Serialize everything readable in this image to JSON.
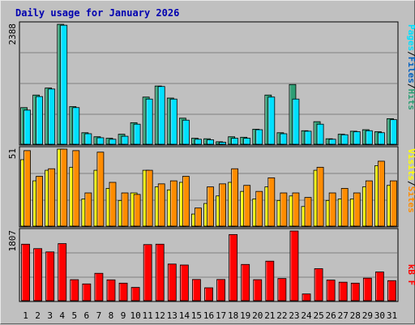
{
  "chart_data": {
    "type": "bar",
    "title": "Daily usage for January 2026",
    "categories": [
      "1",
      "2",
      "3",
      "4",
      "5",
      "6",
      "7",
      "8",
      "9",
      "10",
      "11",
      "12",
      "13",
      "14",
      "15",
      "16",
      "17",
      "18",
      "19",
      "20",
      "21",
      "22",
      "23",
      "24",
      "25",
      "26",
      "27",
      "28",
      "29",
      "30",
      "31"
    ],
    "weekend_days": [
      "3",
      "4",
      "10",
      "11",
      "17",
      "18",
      "24",
      "25",
      "31"
    ],
    "panels": [
      {
        "id": "top",
        "max_label": "2388",
        "ylim": [
          0,
          2388
        ],
        "series": [
          {
            "name": "Hits",
            "color": "#2e9e74",
            "values": [
              730,
              980,
              1120,
              2388,
              750,
              230,
              150,
              120,
              200,
              430,
              940,
              1160,
              920,
              520,
              120,
              110,
              50,
              150,
              140,
              300,
              980,
              230,
              1190,
              270,
              450,
              110,
              200,
              260,
              290,
              250,
              510
            ]
          },
          {
            "name": "Files",
            "color": "#00e0ff",
            "values": [
              680,
              950,
              1100,
              2370,
              730,
              210,
              130,
              100,
              160,
              400,
              900,
              1150,
              900,
              480,
              100,
              90,
              40,
              120,
              120,
              290,
              940,
              210,
              900,
              260,
              400,
              100,
              190,
              250,
              270,
              230,
              490
            ]
          },
          {
            "name": "Pages",
            "color": "#00e0ff",
            "values": []
          }
        ],
        "legend": [
          "Pages",
          "Files",
          "Hits"
        ]
      },
      {
        "id": "middle",
        "max_label": "51",
        "ylim": [
          0,
          51
        ],
        "series": [
          {
            "name": "Visits",
            "color": "#ffff00",
            "values": [
              44,
              30,
              37,
              51,
              39,
              18,
              37,
              25,
              17,
              22,
              37,
              26,
              24,
              29,
              8,
              15,
              20,
              29,
              23,
              18,
              26,
              17,
              20,
              13,
              37,
              17,
              18,
              18,
              26,
              40,
              27
            ]
          },
          {
            "name": "Sites",
            "color": "#ff8c00",
            "values": [
              50,
              33,
              38,
              51,
              50,
              22,
              49,
              29,
              22,
              21,
              37,
              28,
              30,
              33,
              12,
              26,
              28,
              38,
              27,
              23,
              32,
              22,
              22,
              19,
              39,
              22,
              25,
              22,
              30,
              43,
              30
            ]
          }
        ],
        "legend": [
          "Sites",
          "Visits"
        ]
      },
      {
        "id": "bottom",
        "max_label": "1807",
        "ylim": [
          0,
          1807
        ],
        "series": [
          {
            "name": "kB F",
            "color": "#ff0000",
            "values": [
              1465,
              1350,
              1265,
              1480,
              545,
              435,
              710,
              540,
              455,
              345,
              1455,
              1465,
              950,
              925,
              550,
              335,
              550,
              1715,
              940,
              545,
              1025,
              575,
              1807,
              175,
              830,
              535,
              480,
              455,
              585,
              745,
              520
            ]
          }
        ],
        "legend": [
          "kB F"
        ]
      }
    ]
  },
  "colors": {
    "hits": "#2e9e74",
    "files": "#00e0ff",
    "pages": "#00e0ff",
    "visits": "#ffff00",
    "sites": "#ff8c00",
    "kbytes": "#ff0000",
    "weekend_label": "#00a060",
    "title": "#0000b0"
  }
}
